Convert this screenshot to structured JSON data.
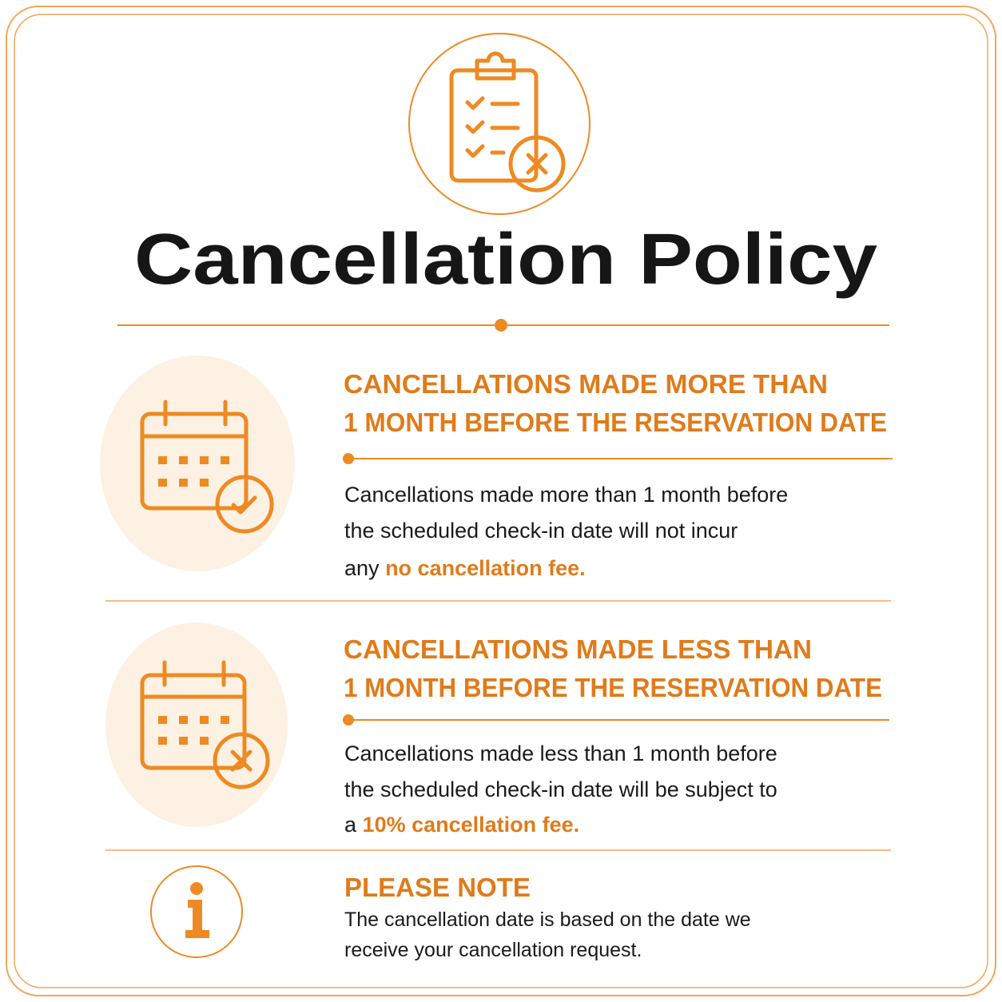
{
  "header": {
    "title": "Cancellation Policy"
  },
  "sections": [
    {
      "heading_lines": [
        "CANCELLATIONS MADE MORE THAN",
        "1 MONTH BEFORE THE RESERVATION DATE"
      ],
      "body_lines": [
        "Cancellations made more than 1 month before",
        "the scheduled check-in date will not incur",
        "any"
      ],
      "highlight": "no cancellation fee."
    },
    {
      "heading_lines": [
        "CANCELLATIONS MADE LESS THAN",
        "1 MONTH BEFORE THE RESERVATION DATE"
      ],
      "body_lines": [
        "Cancellations made less than 1 month before",
        "the scheduled check-in date will be subject to",
        "a"
      ],
      "highlight": "10% cancellation fee."
    }
  ],
  "note": {
    "heading": "PLEASE NOTE",
    "lines": [
      "The cancellation date is based on the date we",
      "receive your cancellation request."
    ]
  }
}
